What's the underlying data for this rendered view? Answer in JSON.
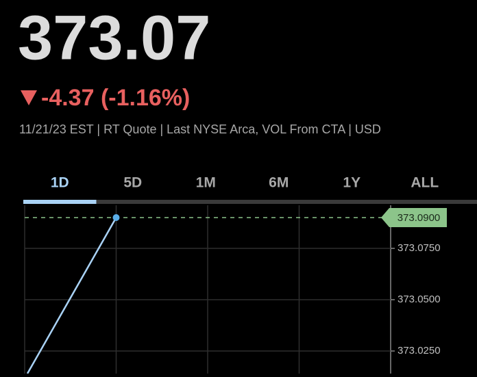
{
  "quote": {
    "price": "373.07",
    "change": "-4.37 (-1.16%)",
    "info": "11/21/23 EST | RT Quote | Last NYSE Arca, VOL From CTA | USD"
  },
  "tabs": {
    "items": [
      "1D",
      "5D",
      "1M",
      "6M",
      "1Y",
      "ALL"
    ],
    "selected": "1D"
  },
  "chart_data": {
    "type": "line",
    "x": [
      0.03,
      1
    ],
    "values": [
      373.014,
      373.09
    ],
    "color": "#a9d2f5",
    "xlim": [
      0,
      4
    ],
    "xticks": [
      1,
      2,
      3
    ],
    "ylim": [
      373.014,
      373.096
    ],
    "yticks": [
      {
        "value": 373.075,
        "label": "373.0750"
      },
      {
        "value": 373.05,
        "label": "373.0500"
      },
      {
        "value": 373.025,
        "label": "373.0250"
      }
    ],
    "grid": true,
    "last_price": {
      "value": 373.09,
      "label": "373.0900"
    },
    "last_color": "#8cc48a"
  }
}
